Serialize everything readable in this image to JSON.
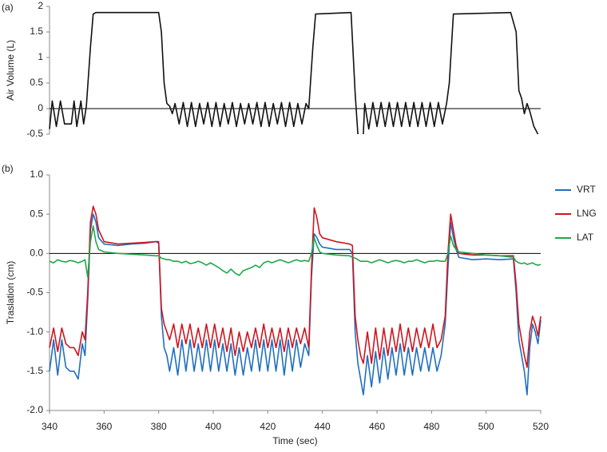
{
  "chart_data": [
    {
      "type": "line",
      "panel_label": "(a)",
      "ylabel": "Air Volume (L)",
      "xlim": [
        340,
        520
      ],
      "ylim": [
        -0.5,
        2
      ],
      "yticks": [
        2,
        1.5,
        1,
        0.5,
        0,
        -0.5
      ],
      "x": [
        340,
        341,
        342.5,
        344,
        345.5,
        348,
        349,
        350,
        351.5,
        352.5,
        353.5,
        355,
        356,
        357,
        380,
        381,
        382,
        383,
        384,
        385,
        386,
        387.5,
        389,
        390.5,
        392,
        393.5,
        395,
        396.5,
        398,
        399.5,
        401,
        402.5,
        404,
        405.5,
        407,
        408.5,
        410,
        411.5,
        413,
        414.5,
        416,
        417.5,
        419,
        420.5,
        422,
        423.5,
        425,
        426.5,
        428,
        429.5,
        431,
        432.5,
        434,
        435,
        436.5,
        437.5,
        450.5,
        452,
        453,
        454,
        455,
        455.5,
        457,
        458.5,
        460,
        461.5,
        463,
        464.5,
        466,
        467.5,
        469,
        470.5,
        472,
        473.5,
        475,
        476.5,
        478,
        479.5,
        481,
        482.5,
        484,
        485.5,
        486.5,
        488,
        509,
        511,
        512,
        513,
        514,
        515,
        516,
        517.5,
        519
      ],
      "series": [
        {
          "name": null,
          "color": "#111111",
          "values": [
            -0.4,
            0.15,
            -0.35,
            0.15,
            -0.3,
            -0.3,
            0.15,
            -0.35,
            0.15,
            -0.3,
            0.05,
            1.2,
            1.85,
            1.88,
            1.88,
            1.5,
            0.5,
            0.1,
            0.05,
            -0.1,
            0.1,
            -0.3,
            0.12,
            -0.35,
            0.12,
            -0.35,
            0.1,
            -0.3,
            0.12,
            -0.35,
            0.12,
            -0.35,
            0.1,
            -0.3,
            0.12,
            -0.35,
            0.1,
            -0.3,
            0.1,
            -0.3,
            0.12,
            -0.35,
            0.12,
            -0.35,
            0.1,
            -0.3,
            0.12,
            -0.35,
            0.12,
            -0.35,
            0.1,
            -0.3,
            0.1,
            0.0,
            1.2,
            1.85,
            1.88,
            0.3,
            -0.5,
            null,
            -0.5,
            0.1,
            -0.4,
            0.12,
            -0.35,
            0.12,
            -0.35,
            0.12,
            -0.35,
            0.12,
            -0.35,
            0.12,
            -0.35,
            0.12,
            -0.35,
            0.12,
            -0.35,
            0.12,
            -0.35,
            0.12,
            -0.3,
            0.1,
            0.5,
            1.85,
            1.88,
            1.5,
            0.35,
            0.2,
            -0.1,
            0.1,
            -0.05,
            -0.35,
            -0.5
          ]
        }
      ]
    },
    {
      "type": "line",
      "panel_label": "(b)",
      "ylabel": "Traslation (cm)",
      "xlabel": "Time (sec)",
      "xlim": [
        340,
        520
      ],
      "xticks": [
        340,
        360,
        380,
        400,
        420,
        440,
        460,
        480,
        500,
        520
      ],
      "ylim": [
        -2,
        1
      ],
      "yticks": [
        {
          "value": 1,
          "label": "1.0"
        },
        0.5,
        {
          "value": 0,
          "label": "0.0"
        },
        -0.5,
        {
          "value": -1,
          "label": "-1.0"
        },
        -1.5,
        {
          "value": -2,
          "label": "-2.0"
        }
      ],
      "legend": "right",
      "x": [
        340,
        341.5,
        343,
        344.5,
        346,
        347.5,
        349,
        350.5,
        352,
        353,
        354,
        355,
        356,
        357,
        358,
        360,
        365,
        370,
        375,
        379,
        380,
        381,
        382,
        383,
        384,
        385.5,
        387,
        388.5,
        390,
        391.5,
        393,
        394.5,
        396,
        397.5,
        399,
        400.5,
        402,
        403.5,
        405,
        406.5,
        408,
        409.5,
        411,
        412.5,
        414,
        415.5,
        417,
        418.5,
        420,
        421.5,
        423,
        424.5,
        426,
        427.5,
        429,
        430.5,
        432,
        433.5,
        435,
        436,
        437,
        438,
        439,
        440,
        445,
        450,
        451,
        452,
        453,
        454,
        455,
        456.5,
        458,
        459.5,
        461,
        462.5,
        464,
        465.5,
        467,
        468.5,
        470,
        471.5,
        473,
        474.5,
        476,
        477.5,
        479,
        480.5,
        482,
        483.5,
        485,
        486,
        487,
        488,
        489,
        490,
        495,
        500,
        505,
        510,
        511,
        512,
        513,
        514,
        515,
        516,
        517,
        518,
        519,
        520
      ],
      "series": [
        {
          "name": "VRT",
          "color": "#1f6fbf",
          "values": [
            -1.5,
            -1.1,
            -1.55,
            -1.1,
            -1.45,
            -1.5,
            -1.5,
            -1.6,
            -1.15,
            -1.3,
            -0.6,
            0.3,
            0.5,
            0.4,
            0.2,
            0.12,
            0.1,
            0.12,
            0.13,
            0.15,
            0.13,
            -0.8,
            -1.2,
            -1.3,
            -1.5,
            -1.2,
            -1.55,
            -1.1,
            -1.5,
            -1.1,
            -1.5,
            -1.15,
            -1.5,
            -1.1,
            -1.5,
            -1.1,
            -1.5,
            -1.15,
            -1.5,
            -1.15,
            -1.55,
            -1.2,
            -1.55,
            -1.2,
            -1.5,
            -1.1,
            -1.5,
            -1.1,
            -1.5,
            -1.1,
            -1.5,
            -1.1,
            -1.55,
            -1.1,
            -1.5,
            -1.1,
            -1.45,
            -1.15,
            -1.3,
            -0.3,
            0.25,
            0.2,
            0.12,
            0.08,
            0.05,
            0.05,
            0.0,
            -1.0,
            -1.4,
            -1.6,
            -1.8,
            -1.3,
            -1.7,
            -1.25,
            -1.65,
            -1.2,
            -1.6,
            -1.2,
            -1.55,
            -1.15,
            -1.55,
            -1.2,
            -1.55,
            -1.2,
            -1.5,
            -1.2,
            -1.5,
            -1.2,
            -1.5,
            -1.3,
            -0.9,
            -0.2,
            0.4,
            0.2,
            0.05,
            -0.05,
            -0.08,
            -0.07,
            -0.08,
            -0.07,
            -0.5,
            -1.1,
            -1.3,
            -1.5,
            -1.8,
            -1.2,
            -0.9,
            -1.0,
            -1.15,
            -0.85
          ]
        },
        {
          "name": "LNG",
          "color": "#d0141e",
          "values": [
            -1.2,
            -0.95,
            -1.25,
            -0.95,
            -1.15,
            -1.2,
            -1.2,
            -1.3,
            -1.0,
            -1.1,
            -0.5,
            0.4,
            0.6,
            0.5,
            0.3,
            0.15,
            0.12,
            0.13,
            0.14,
            0.15,
            0.15,
            -0.7,
            -0.9,
            -1.0,
            -1.1,
            -0.9,
            -1.2,
            -0.9,
            -1.15,
            -0.9,
            -1.2,
            -0.95,
            -1.2,
            -0.9,
            -1.2,
            -0.9,
            -1.2,
            -0.95,
            -1.25,
            -0.95,
            -1.3,
            -1.0,
            -1.25,
            -1.0,
            -1.2,
            -0.95,
            -1.2,
            -0.9,
            -1.2,
            -0.95,
            -1.2,
            -0.95,
            -1.25,
            -0.95,
            -1.2,
            -0.95,
            -1.15,
            -0.95,
            -1.2,
            -0.2,
            0.58,
            0.45,
            0.25,
            0.2,
            0.15,
            0.12,
            0.1,
            -0.8,
            -1.1,
            -1.3,
            -1.4,
            -1.0,
            -1.4,
            -0.95,
            -1.35,
            -0.95,
            -1.3,
            -0.95,
            -1.25,
            -0.9,
            -1.25,
            -0.95,
            -1.25,
            -0.95,
            -1.2,
            -0.95,
            -1.2,
            -0.9,
            -1.2,
            -1.1,
            -0.8,
            0.0,
            0.5,
            0.3,
            0.1,
            0.0,
            -0.02,
            -0.02,
            -0.03,
            -0.03,
            -0.4,
            -0.9,
            -1.1,
            -1.3,
            -1.45,
            -1.0,
            -0.8,
            -0.9,
            -1.05,
            -0.8
          ]
        },
        {
          "name": "LAT",
          "color": "#1fa84a",
          "values": [
            -0.1,
            -0.12,
            -0.08,
            -0.1,
            -0.11,
            -0.09,
            -0.1,
            -0.12,
            -0.1,
            -0.08,
            -0.3,
            0.15,
            0.35,
            0.15,
            0.05,
            0.02,
            0.0,
            -0.01,
            -0.02,
            -0.03,
            -0.03,
            -0.06,
            -0.07,
            -0.08,
            -0.08,
            -0.1,
            -0.1,
            -0.12,
            -0.1,
            -0.13,
            -0.12,
            -0.1,
            -0.12,
            -0.15,
            -0.12,
            -0.15,
            -0.18,
            -0.22,
            -0.25,
            -0.2,
            -0.25,
            -0.28,
            -0.22,
            -0.2,
            -0.18,
            -0.15,
            -0.18,
            -0.12,
            -0.1,
            -0.12,
            -0.1,
            -0.08,
            -0.1,
            -0.12,
            -0.1,
            -0.08,
            -0.1,
            -0.09,
            -0.1,
            0.0,
            0.2,
            0.1,
            0.02,
            0.0,
            -0.02,
            -0.03,
            -0.05,
            -0.06,
            -0.08,
            -0.1,
            -0.1,
            -0.1,
            -0.12,
            -0.1,
            -0.08,
            -0.1,
            -0.12,
            -0.1,
            -0.09,
            -0.1,
            -0.12,
            -0.1,
            -0.1,
            -0.08,
            -0.1,
            -0.12,
            -0.1,
            -0.1,
            -0.09,
            -0.1,
            -0.1,
            0.0,
            0.22,
            0.1,
            0.05,
            0.02,
            0.0,
            -0.02,
            -0.03,
            -0.05,
            -0.1,
            -0.12,
            -0.13,
            -0.12,
            -0.14,
            -0.13,
            -0.12,
            -0.14,
            -0.15,
            -0.14
          ]
        }
      ]
    }
  ]
}
